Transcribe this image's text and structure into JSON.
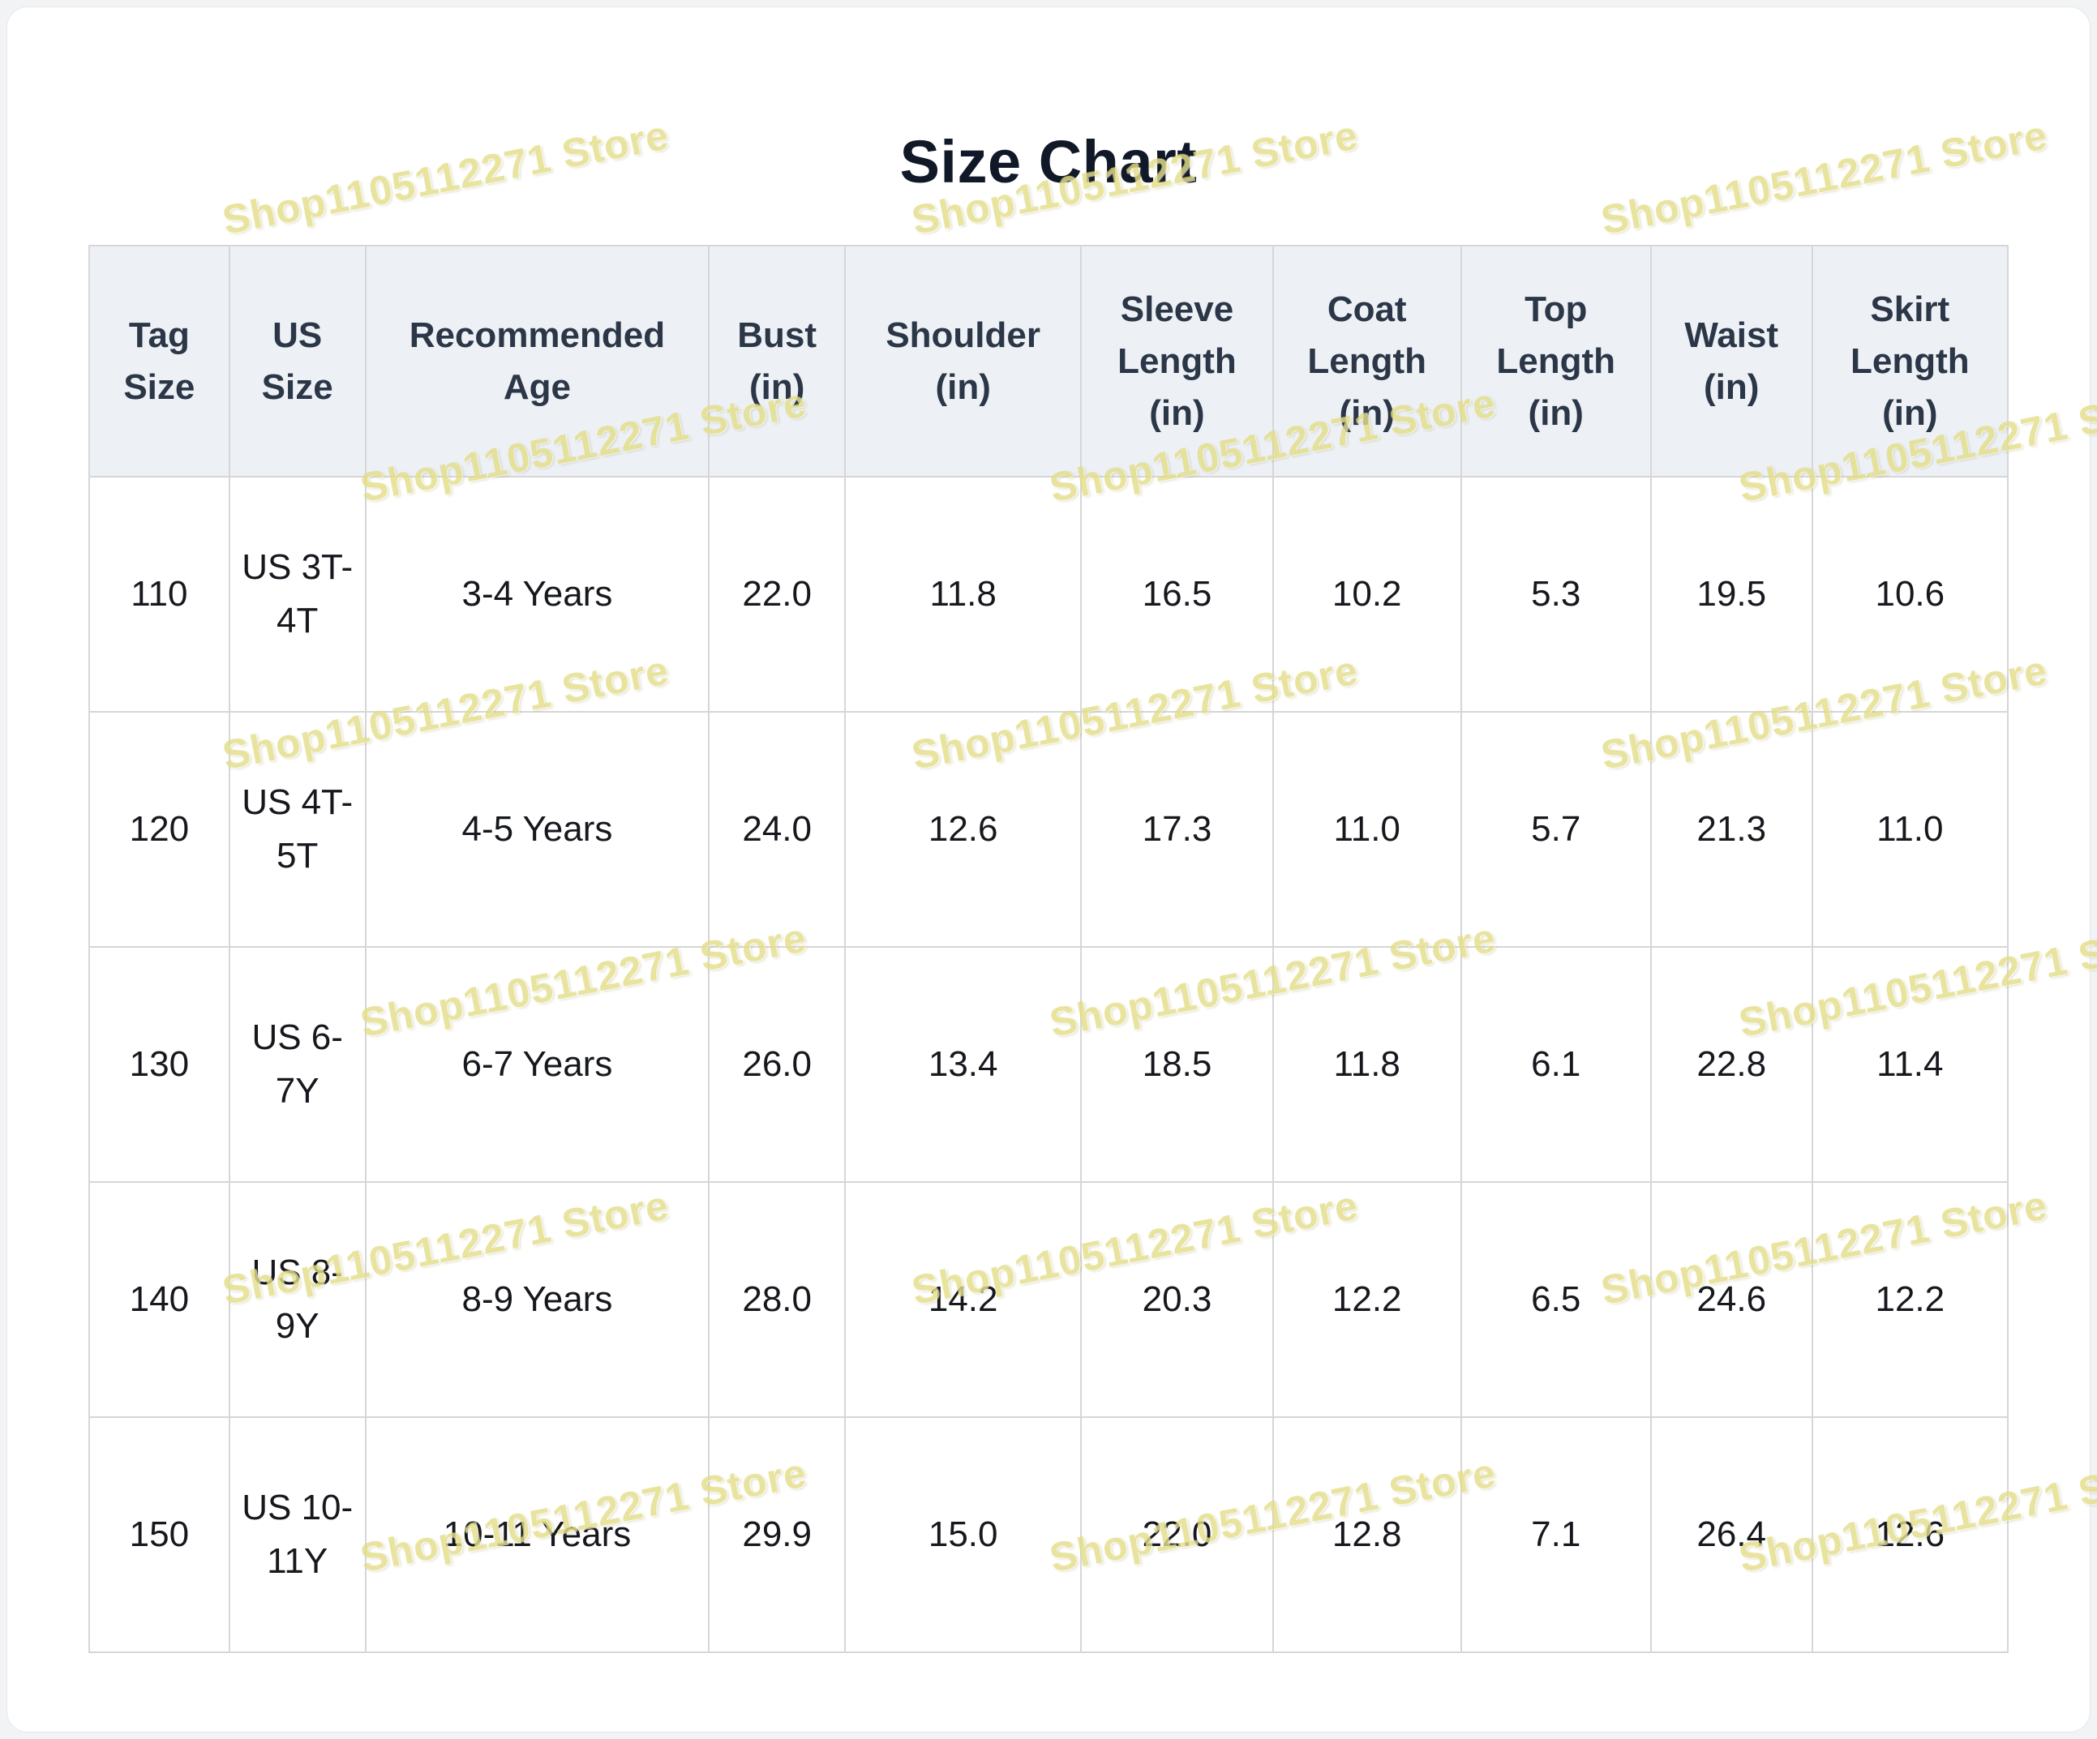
{
  "page": {
    "title": "Size Chart"
  },
  "watermark": {
    "text": "Shop1105112271 Store"
  },
  "colors": {
    "header_bg": "#edf1f6",
    "header_text": "#2b3647",
    "body_text": "#16181d",
    "title_text": "#111827",
    "border": "#d6d6d6",
    "watermark": "rgba(224, 218, 122, 0.85)"
  },
  "chart_data": {
    "type": "table",
    "title": "Size Chart",
    "columns": [
      "Tag Size",
      "US Size",
      "Recommended Age",
      "Bust (in)",
      "Shoulder (in)",
      "Sleeve Length (in)",
      "Coat Length (in)",
      "Top Length (in)",
      "Waist (in)",
      "Skirt Length (in)"
    ],
    "rows": [
      [
        "110",
        "US 3T-4T",
        "3-4 Years",
        "22.0",
        "11.8",
        "16.5",
        "10.2",
        "5.3",
        "19.5",
        "10.6"
      ],
      [
        "120",
        "US 4T-5T",
        "4-5 Years",
        "24.0",
        "12.6",
        "17.3",
        "11.0",
        "5.7",
        "21.3",
        "11.0"
      ],
      [
        "130",
        "US 6-7Y",
        "6-7 Years",
        "26.0",
        "13.4",
        "18.5",
        "11.8",
        "6.1",
        "22.8",
        "11.4"
      ],
      [
        "140",
        "US 8-9Y",
        "8-9 Years",
        "28.0",
        "14.2",
        "20.3",
        "12.2",
        "6.5",
        "24.6",
        "12.2"
      ],
      [
        "150",
        "US 10-11Y",
        "10-11 Years",
        "29.9",
        "15.0",
        "22.0",
        "12.8",
        "7.1",
        "26.4",
        "12.6"
      ]
    ]
  }
}
